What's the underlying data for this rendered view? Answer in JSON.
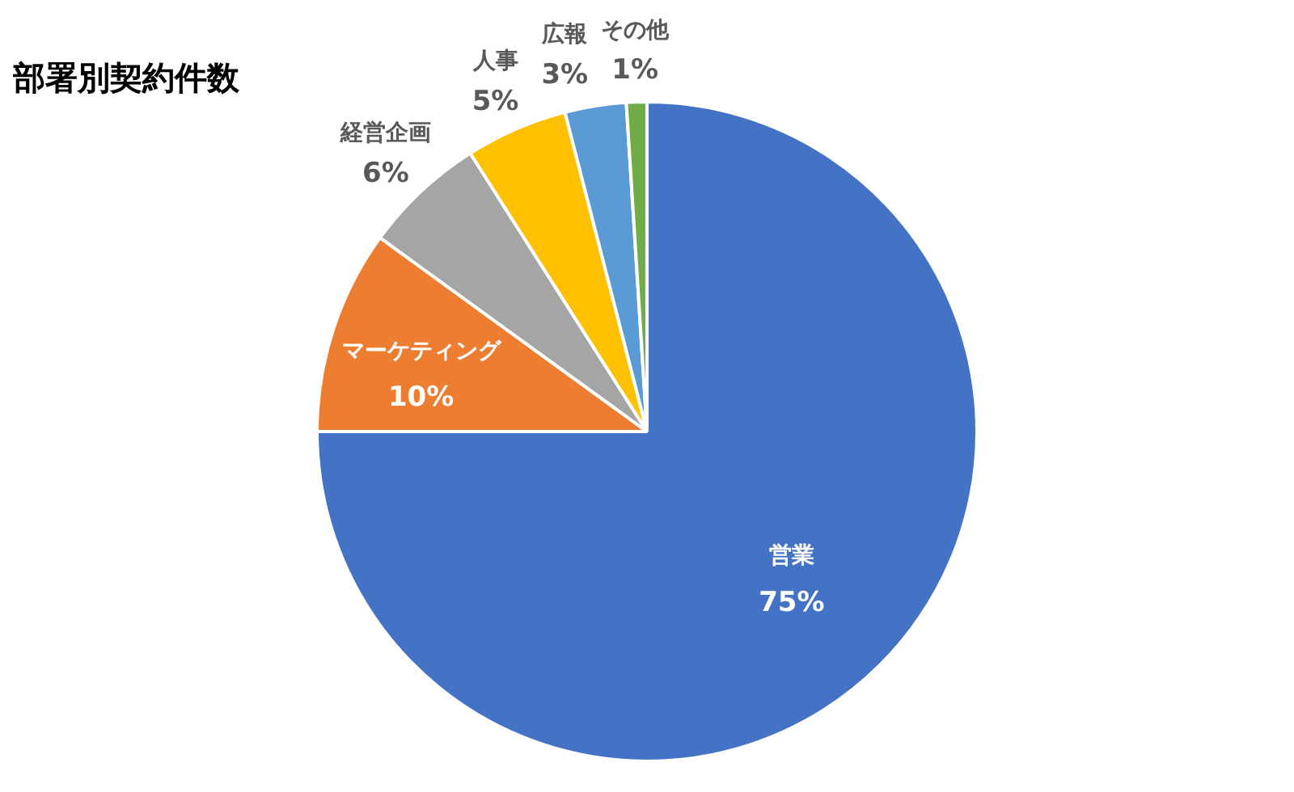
{
  "chart_data": {
    "type": "pie",
    "title": "部署別契約件数",
    "categories": [
      "営業",
      "マーケティング",
      "経営企画",
      "人事",
      "広報",
      "その他"
    ],
    "values": [
      75,
      10,
      6,
      5,
      3,
      1
    ],
    "colors": [
      "#4472c4",
      "#ed7d31",
      "#a5a5a5",
      "#ffc000",
      "#5b9bd5",
      "#70ad47"
    ],
    "value_labels": [
      "75%",
      "10%",
      "6%",
      "5%",
      "3%",
      "1%"
    ],
    "legend": false
  }
}
